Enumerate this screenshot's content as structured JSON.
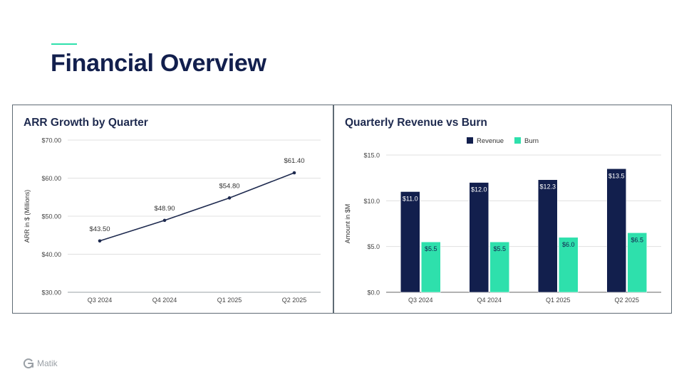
{
  "slide": {
    "title": "Financial Overview",
    "accent_color": "#2ee0ac",
    "title_color": "#121f4d"
  },
  "footer": {
    "logo_text": "Matik",
    "logo_icon": "matik-logo-icon"
  },
  "chart_data": [
    {
      "type": "line",
      "title": "ARR Growth by Quarter",
      "xlabel": "",
      "ylabel": "ARR in $ (Millions)",
      "categories": [
        "Q3 2024",
        "Q4 2024",
        "Q1 2025",
        "Q2 2025"
      ],
      "values": [
        43.5,
        48.9,
        54.8,
        61.4
      ],
      "data_labels": [
        "$43.50",
        "$48.90",
        "$54.80",
        "$61.40"
      ],
      "yticks": [
        30,
        40,
        50,
        60,
        70
      ],
      "ytick_labels": [
        "$30.00",
        "$40.00",
        "$50.00",
        "$60.00",
        "$70.00"
      ],
      "ylim": [
        30,
        70
      ],
      "grid": true,
      "color": "#1e2a4f"
    },
    {
      "type": "bar",
      "title": "Quarterly Revenue vs Burn",
      "xlabel": "",
      "ylabel": "Amount in $M",
      "categories": [
        "Q3 2024",
        "Q4 2024",
        "Q1 2025",
        "Q2 2025"
      ],
      "series": [
        {
          "name": "Revenue",
          "values": [
            11.0,
            12.0,
            12.3,
            13.5
          ],
          "labels": [
            "$11.0",
            "$12.0",
            "$12.3",
            "$13.5"
          ],
          "color": "#121f4d"
        },
        {
          "name": "Burn",
          "values": [
            5.5,
            5.5,
            6.0,
            6.5
          ],
          "labels": [
            "$5.5",
            "$5.5",
            "$6.0",
            "$6.5"
          ],
          "color": "#2ee0ac"
        }
      ],
      "yticks": [
        0,
        5,
        10,
        15
      ],
      "ytick_labels": [
        "$0.0",
        "$5.0",
        "$10.0",
        "$15.0"
      ],
      "ylim": [
        0,
        15
      ],
      "grid": true,
      "legend": "top-center"
    }
  ]
}
